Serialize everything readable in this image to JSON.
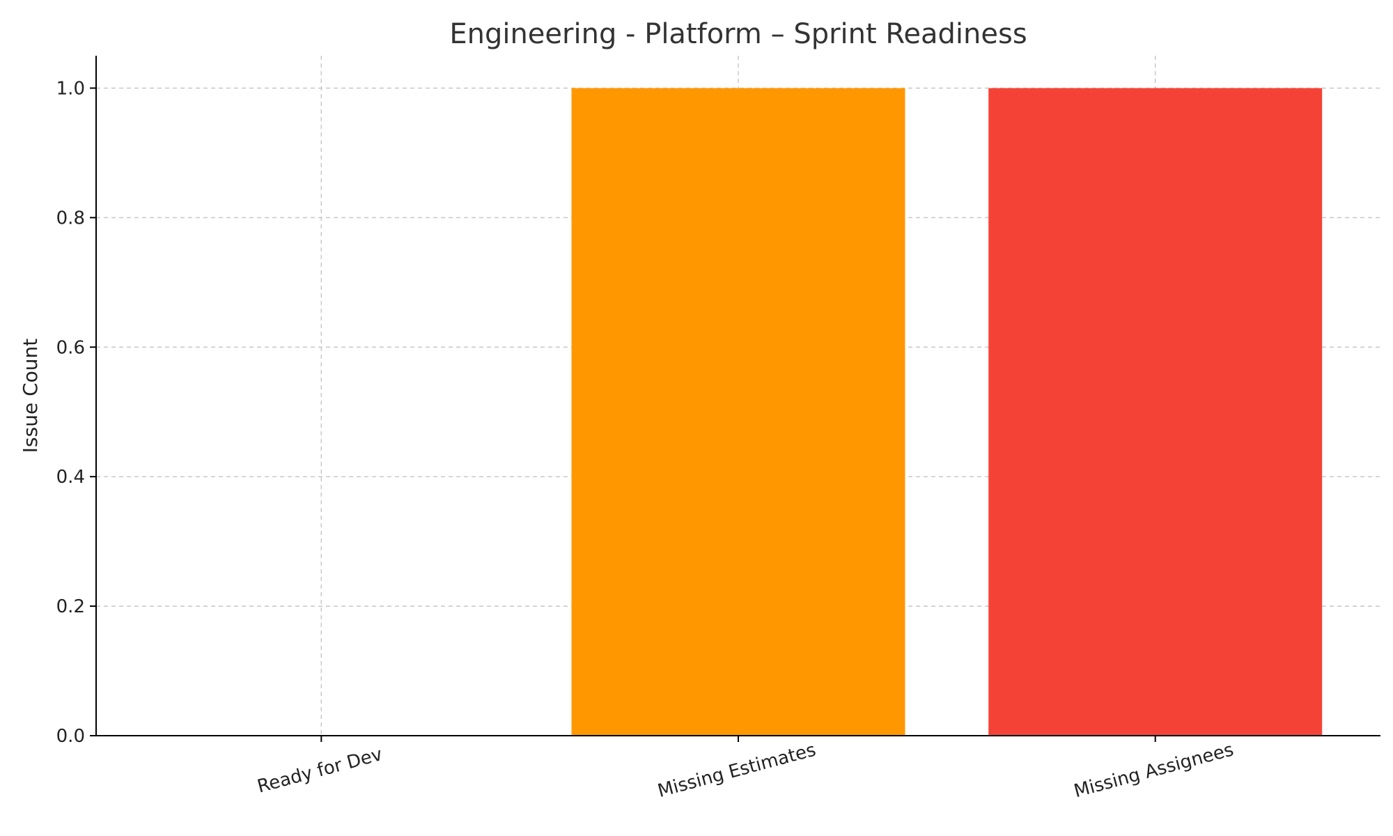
{
  "chart_data": {
    "type": "bar",
    "title": "Engineering - Platform – Sprint Readiness",
    "xlabel": "",
    "ylabel": "Issue Count",
    "categories": [
      "Ready for Dev",
      "Missing Estimates",
      "Missing Assignees"
    ],
    "values": [
      0,
      1,
      1
    ],
    "colors": [
      "#4caf50",
      "#ff9800",
      "#f44336"
    ],
    "ylim": [
      0,
      1.05
    ],
    "yticks": [
      0.0,
      0.2,
      0.4,
      0.6,
      0.8,
      1.0
    ],
    "ytick_labels": [
      "0.0",
      "0.2",
      "0.4",
      "0.6",
      "0.8",
      "1.0"
    ],
    "grid": true,
    "xtick_rotation": 15
  }
}
